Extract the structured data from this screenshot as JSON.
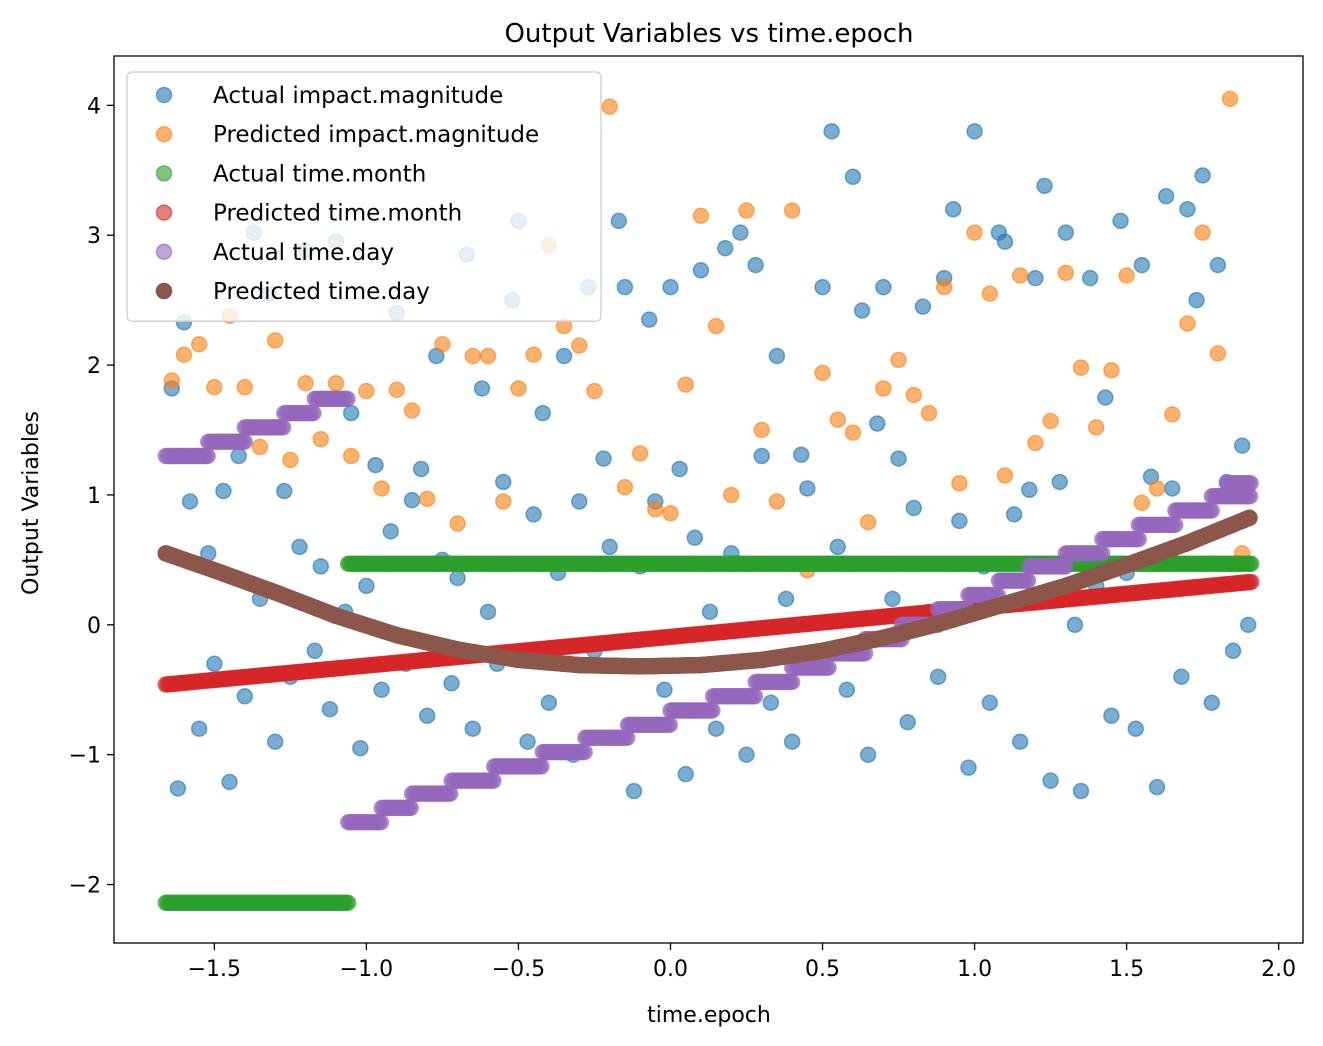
{
  "chart_data": {
    "type": "scatter",
    "title": "Output Variables vs time.epoch",
    "xlabel": "time.epoch",
    "ylabel": "Output Variables",
    "xlim": [
      -1.83,
      2.08
    ],
    "ylim": [
      -2.45,
      4.38
    ],
    "xticks": [
      -1.5,
      -1.0,
      -0.5,
      0.0,
      0.5,
      1.0,
      1.5,
      2.0
    ],
    "xtick_labels": [
      "−1.5",
      "−1.0",
      "−0.5",
      "0.0",
      "0.5",
      "1.0",
      "1.5",
      "2.0"
    ],
    "yticks": [
      -2,
      -1,
      0,
      1,
      2,
      3,
      4
    ],
    "ytick_labels": [
      "−2",
      "−1",
      "0",
      "1",
      "2",
      "3",
      "4"
    ],
    "grid": false,
    "legend_position": "top-left",
    "x_range": [
      -1.66,
      1.91
    ],
    "series": [
      {
        "name": "Actual impact.magnitude",
        "color": "#1f77b4",
        "alpha": 0.6,
        "kind": "scatter",
        "x": [
          -1.64,
          -1.62,
          -1.6,
          -1.58,
          -1.55,
          -1.52,
          -1.5,
          -1.47,
          -1.45,
          -1.42,
          -1.4,
          -1.37,
          -1.35,
          -1.32,
          -1.3,
          -1.27,
          -1.25,
          -1.22,
          -1.2,
          -1.17,
          -1.15,
          -1.12,
          -1.1,
          -1.07,
          -1.05,
          -1.02,
          -1.0,
          -0.97,
          -0.95,
          -0.92,
          -0.9,
          -0.87,
          -0.85,
          -0.82,
          -0.8,
          -0.77,
          -0.75,
          -0.72,
          -0.7,
          -0.67,
          -0.65,
          -0.62,
          -0.6,
          -0.57,
          -0.55,
          -0.52,
          -0.5,
          -0.47,
          -0.45,
          -0.42,
          -0.4,
          -0.37,
          -0.35,
          -0.32,
          -0.3,
          -0.27,
          -0.25,
          -0.22,
          -0.2,
          -0.17,
          -0.15,
          -0.12,
          -0.1,
          -0.07,
          -0.05,
          -0.02,
          0.0,
          0.03,
          0.05,
          0.08,
          0.1,
          0.13,
          0.15,
          0.18,
          0.2,
          0.23,
          0.25,
          0.28,
          0.3,
          0.33,
          0.35,
          0.38,
          0.4,
          0.43,
          0.45,
          0.48,
          0.5,
          0.53,
          0.55,
          0.58,
          0.6,
          0.63,
          0.65,
          0.68,
          0.7,
          0.73,
          0.75,
          0.78,
          0.8,
          0.83,
          0.85,
          0.88,
          0.9,
          0.93,
          0.95,
          0.98,
          1.0,
          1.03,
          1.05,
          1.08,
          1.1,
          1.13,
          1.15,
          1.18,
          1.2,
          1.23,
          1.25,
          1.28,
          1.3,
          1.33,
          1.35,
          1.38,
          1.4,
          1.43,
          1.45,
          1.48,
          1.5,
          1.53,
          1.55,
          1.58,
          1.6,
          1.63,
          1.65,
          1.68,
          1.7,
          1.73,
          1.75,
          1.78,
          1.8,
          1.83,
          1.85,
          1.88,
          1.9
        ],
        "y": [
          1.82,
          -1.26,
          2.33,
          0.95,
          -0.8,
          0.55,
          -0.3,
          1.03,
          -1.21,
          1.3,
          -0.55,
          3.02,
          0.2,
          2.55,
          -0.9,
          1.03,
          -0.4,
          0.6,
          2.88,
          -0.2,
          0.45,
          -0.65,
          2.95,
          0.1,
          1.63,
          -0.95,
          0.3,
          1.23,
          -0.5,
          0.72,
          2.4,
          -0.3,
          0.96,
          1.2,
          -0.7,
          2.07,
          0.5,
          -0.45,
          0.36,
          2.85,
          -0.8,
          1.82,
          0.1,
          -0.3,
          1.1,
          2.5,
          3.11,
          -0.9,
          0.85,
          1.63,
          -0.6,
          0.4,
          2.07,
          -1.0,
          0.95,
          2.6,
          -0.2,
          1.28,
          0.6,
          3.11,
          2.6,
          -1.28,
          0.45,
          2.35,
          0.95,
          -0.5,
          2.6,
          1.2,
          -1.15,
          0.67,
          2.73,
          0.1,
          -0.8,
          2.9,
          0.55,
          3.02,
          -1.0,
          2.77,
          1.3,
          -0.6,
          2.07,
          0.2,
          -0.9,
          1.31,
          1.05,
          -0.3,
          2.6,
          3.8,
          0.6,
          -0.5,
          3.45,
          2.42,
          -1.0,
          1.55,
          2.6,
          0.2,
          1.28,
          -0.75,
          0.9,
          2.45,
          0.1,
          -0.4,
          2.67,
          3.2,
          0.8,
          -1.1,
          3.8,
          0.45,
          -0.6,
          3.02,
          2.95,
          0.85,
          -0.9,
          1.04,
          2.67,
          3.38,
          -1.2,
          1.1,
          3.02,
          0.0,
          -1.28,
          2.67,
          0.3,
          1.75,
          -0.7,
          3.11,
          0.4,
          -0.8,
          2.77,
          1.14,
          -1.25,
          3.3,
          1.05,
          -0.4,
          3.2,
          2.5,
          3.46,
          -0.6,
          2.77,
          1.1,
          -0.2,
          1.38,
          0.0
        ]
      },
      {
        "name": "Predicted impact.magnitude",
        "color": "#ff7f0e",
        "alpha": 0.6,
        "kind": "scatter",
        "x": [
          -1.64,
          -1.6,
          -1.55,
          -1.5,
          -1.45,
          -1.4,
          -1.35,
          -1.3,
          -1.25,
          -1.2,
          -1.15,
          -1.1,
          -1.05,
          -1.0,
          -0.95,
          -0.9,
          -0.85,
          -0.8,
          -0.75,
          -0.7,
          -0.65,
          -0.6,
          -0.55,
          -0.5,
          -0.45,
          -0.4,
          -0.35,
          -0.3,
          -0.25,
          -0.2,
          -0.15,
          -0.1,
          -0.05,
          0.0,
          0.05,
          0.1,
          0.15,
          0.2,
          0.25,
          0.3,
          0.35,
          0.4,
          0.45,
          0.5,
          0.55,
          0.6,
          0.65,
          0.7,
          0.75,
          0.8,
          0.85,
          0.9,
          0.95,
          1.0,
          1.05,
          1.1,
          1.15,
          1.2,
          1.25,
          1.3,
          1.35,
          1.4,
          1.45,
          1.5,
          1.55,
          1.6,
          1.65,
          1.7,
          1.75,
          1.8,
          1.84,
          1.88
        ],
        "y": [
          1.88,
          2.08,
          2.16,
          1.83,
          2.38,
          1.83,
          1.37,
          2.19,
          1.27,
          1.86,
          1.43,
          1.86,
          1.3,
          1.8,
          1.05,
          1.81,
          1.65,
          0.97,
          2.16,
          0.78,
          2.07,
          2.07,
          0.95,
          1.82,
          2.08,
          2.92,
          2.3,
          2.15,
          1.8,
          3.99,
          1.06,
          1.32,
          0.89,
          0.86,
          1.85,
          3.15,
          2.3,
          1.0,
          3.19,
          1.5,
          0.95,
          3.19,
          0.42,
          1.94,
          1.58,
          1.48,
          0.79,
          1.82,
          2.04,
          1.77,
          1.63,
          2.6,
          1.09,
          3.02,
          2.55,
          1.15,
          2.69,
          1.4,
          1.57,
          2.71,
          1.98,
          1.52,
          1.96,
          2.69,
          0.94,
          1.05,
          1.62,
          2.32,
          3.02,
          2.09,
          4.05,
          0.55
        ]
      },
      {
        "name": "Actual time.month",
        "color": "#2ca02c",
        "alpha": 0.6,
        "kind": "step",
        "steps": [
          [
            -1.66,
            -1.06,
            -2.14
          ],
          [
            -1.06,
            1.91,
            0.47
          ]
        ]
      },
      {
        "name": "Predicted time.month",
        "color": "#d62728",
        "alpha": 0.6,
        "kind": "line",
        "x": [
          -1.66,
          1.91
        ],
        "y": [
          -0.46,
          0.33
        ]
      },
      {
        "name": "Actual time.day",
        "color": "#9467bd",
        "alpha": 0.6,
        "kind": "step",
        "steps": [
          [
            -1.66,
            -1.52,
            1.3
          ],
          [
            -1.52,
            -1.4,
            1.41
          ],
          [
            -1.4,
            -1.27,
            1.52
          ],
          [
            -1.27,
            -1.17,
            1.63
          ],
          [
            -1.17,
            -1.06,
            1.74
          ],
          [
            -1.06,
            -0.95,
            -1.52
          ],
          [
            -0.95,
            -0.85,
            -1.41
          ],
          [
            -0.85,
            -0.72,
            -1.3
          ],
          [
            -0.72,
            -0.58,
            -1.2
          ],
          [
            -0.58,
            -0.42,
            -1.09
          ],
          [
            -0.42,
            -0.28,
            -0.98
          ],
          [
            -0.28,
            -0.14,
            -0.87
          ],
          [
            -0.14,
            0.0,
            -0.77
          ],
          [
            0.0,
            0.14,
            -0.66
          ],
          [
            0.14,
            0.28,
            -0.55
          ],
          [
            0.28,
            0.4,
            -0.44
          ],
          [
            0.4,
            0.52,
            -0.33
          ],
          [
            0.52,
            0.64,
            -0.22
          ],
          [
            0.64,
            0.76,
            -0.11
          ],
          [
            0.76,
            0.88,
            0.0
          ],
          [
            0.88,
            0.98,
            0.12
          ],
          [
            0.98,
            1.08,
            0.23
          ],
          [
            1.08,
            1.18,
            0.34
          ],
          [
            1.18,
            1.3,
            0.45
          ],
          [
            1.3,
            1.42,
            0.55
          ],
          [
            1.42,
            1.54,
            0.66
          ],
          [
            1.54,
            1.66,
            0.77
          ],
          [
            1.66,
            1.78,
            0.88
          ],
          [
            1.78,
            1.91,
            0.99
          ],
          [
            1.83,
            1.91,
            1.09
          ]
        ]
      },
      {
        "name": "Predicted time.day",
        "color": "#8c564b",
        "alpha": 1.0,
        "kind": "curve",
        "x": [
          -1.66,
          -1.5,
          -1.3,
          -1.1,
          -0.9,
          -0.7,
          -0.5,
          -0.3,
          -0.1,
          0.1,
          0.3,
          0.5,
          0.7,
          0.9,
          1.1,
          1.3,
          1.5,
          1.7,
          1.91
        ],
        "y": [
          0.55,
          0.42,
          0.25,
          0.07,
          -0.08,
          -0.19,
          -0.27,
          -0.31,
          -0.32,
          -0.31,
          -0.27,
          -0.2,
          -0.1,
          0.02,
          0.16,
          0.3,
          0.46,
          0.63,
          0.83
        ]
      }
    ]
  }
}
